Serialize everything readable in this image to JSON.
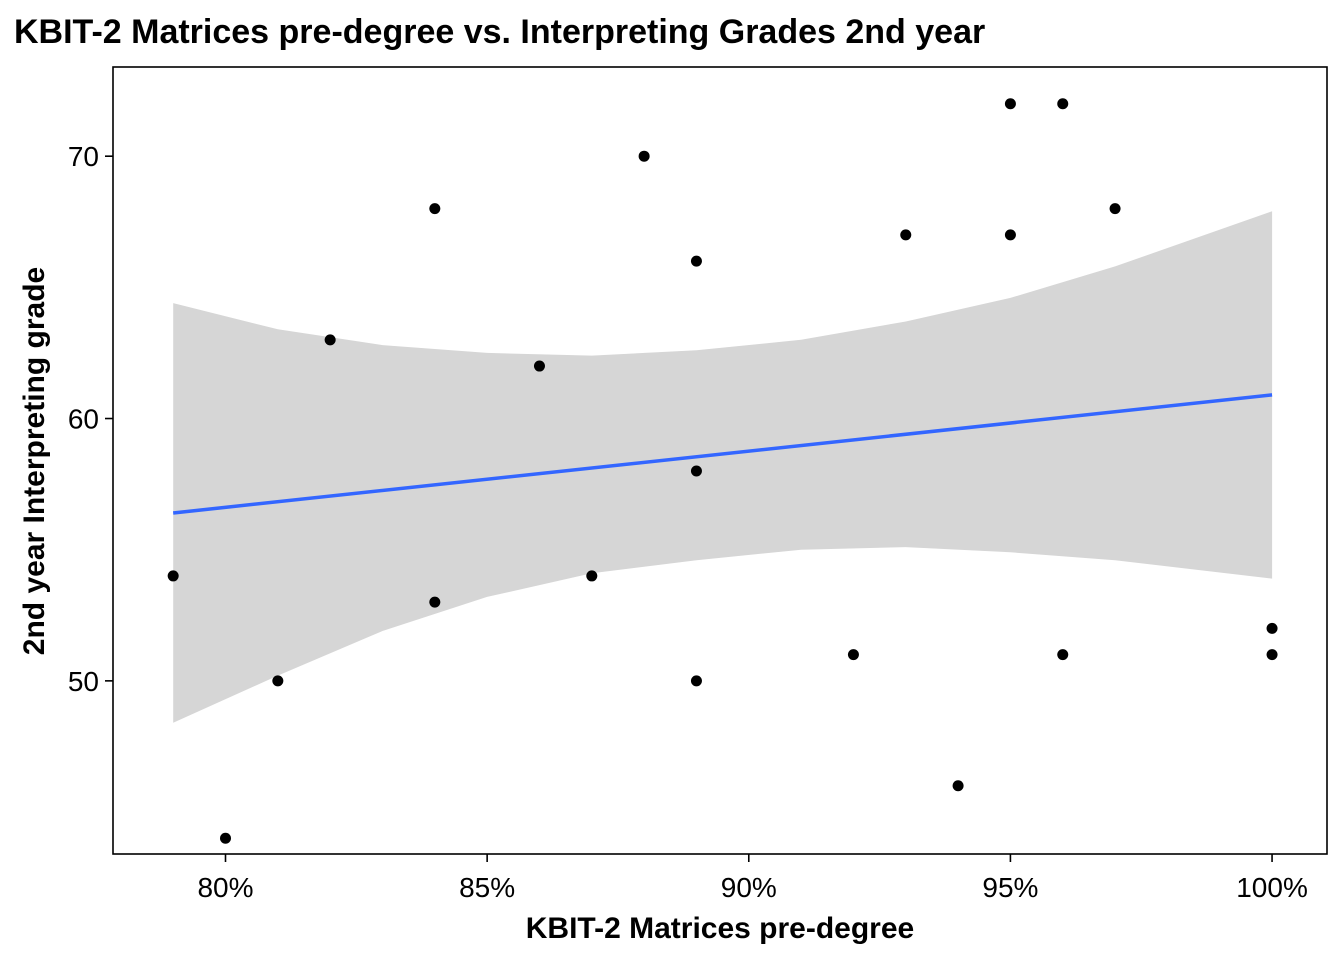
{
  "chart_data": {
    "type": "scatter",
    "title": "KBIT-2 Matrices pre-degree vs. Interpreting Grades 2nd year",
    "xlabel": "KBIT-2 Matrices pre-degree",
    "ylabel": "2nd year Interpreting grade",
    "xlim": [
      0.7785,
      1.0105
    ],
    "ylim": [
      43.4,
      73.4
    ],
    "x_ticks": [
      0.8,
      0.85,
      0.9,
      0.95,
      1.0
    ],
    "x_tick_labels": [
      "80%",
      "85%",
      "90%",
      "95%",
      "100%"
    ],
    "y_ticks": [
      50,
      60,
      70
    ],
    "y_tick_labels": [
      "50",
      "60",
      "70"
    ],
    "grid": false,
    "legend": "none",
    "points": [
      {
        "x": 0.79,
        "y": 54
      },
      {
        "x": 0.8,
        "y": 44
      },
      {
        "x": 0.81,
        "y": 50
      },
      {
        "x": 0.82,
        "y": 63
      },
      {
        "x": 0.84,
        "y": 68
      },
      {
        "x": 0.84,
        "y": 53
      },
      {
        "x": 0.86,
        "y": 62
      },
      {
        "x": 0.87,
        "y": 54
      },
      {
        "x": 0.88,
        "y": 70
      },
      {
        "x": 0.89,
        "y": 66
      },
      {
        "x": 0.89,
        "y": 58
      },
      {
        "x": 0.89,
        "y": 50
      },
      {
        "x": 0.92,
        "y": 51
      },
      {
        "x": 0.93,
        "y": 67
      },
      {
        "x": 0.94,
        "y": 46
      },
      {
        "x": 0.95,
        "y": 72
      },
      {
        "x": 0.95,
        "y": 67
      },
      {
        "x": 0.96,
        "y": 72
      },
      {
        "x": 0.96,
        "y": 51
      },
      {
        "x": 0.97,
        "y": 68
      },
      {
        "x": 1.0,
        "y": 52
      },
      {
        "x": 1.0,
        "y": 51
      }
    ],
    "fit_line": {
      "method": "linear",
      "color": "#3366FF",
      "x": [
        0.79,
        1.0
      ],
      "y": [
        56.4,
        60.9
      ]
    },
    "confidence_band": {
      "color": "#D6D6D6",
      "x": [
        0.79,
        0.81,
        0.83,
        0.85,
        0.87,
        0.89,
        0.91,
        0.93,
        0.95,
        0.97,
        1.0
      ],
      "upper": [
        64.4,
        63.4,
        62.8,
        62.5,
        62.4,
        62.6,
        63.0,
        63.7,
        64.6,
        65.8,
        67.9
      ],
      "lower": [
        48.4,
        50.2,
        51.9,
        53.2,
        54.1,
        54.6,
        55.0,
        55.1,
        54.9,
        54.6,
        53.9
      ]
    },
    "colors": {
      "points": "#000000",
      "axis": "#000000"
    }
  }
}
